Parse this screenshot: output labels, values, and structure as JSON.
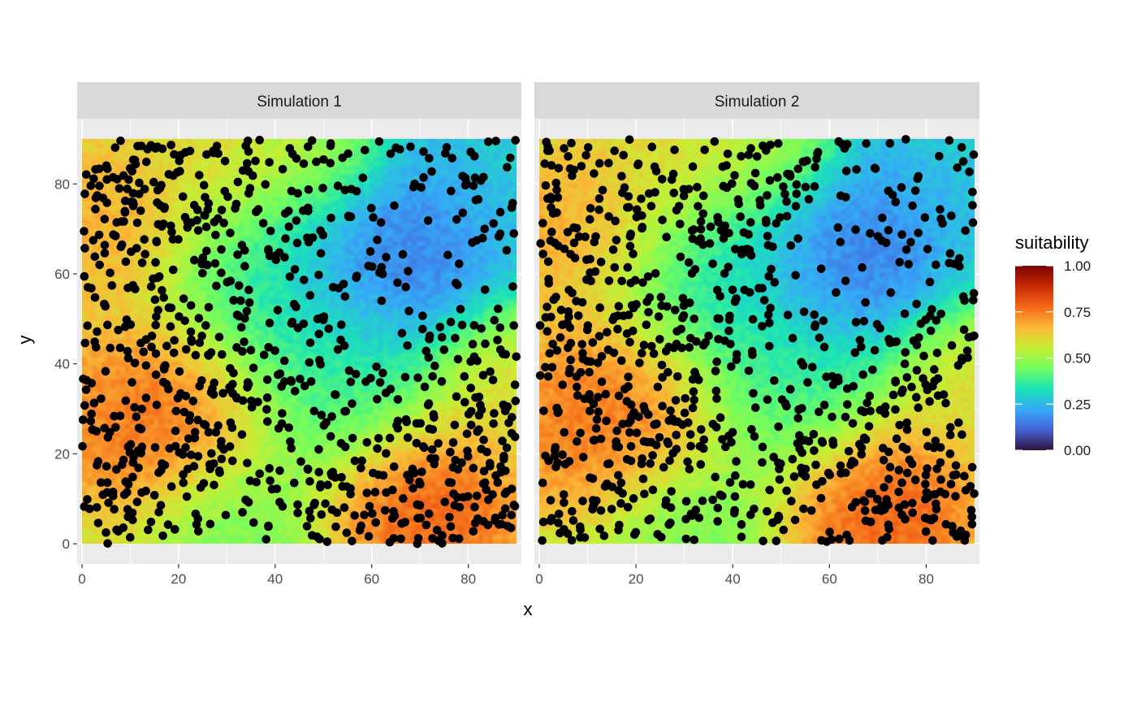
{
  "chart_data": {
    "type": "heatmap",
    "facets": [
      "Simulation 1",
      "Simulation 2"
    ],
    "xlabel": "x",
    "ylabel": "y",
    "xlim": [
      -1,
      91
    ],
    "ylim": [
      -4.5,
      94.5
    ],
    "xticks": [
      0,
      20,
      40,
      60,
      80
    ],
    "yticks": [
      0,
      20,
      40,
      60,
      80
    ],
    "raster_extent": {
      "x": [
        0,
        90
      ],
      "y": [
        0,
        90
      ]
    },
    "fill_scale": {
      "name": "suitability",
      "limits": [
        0,
        1
      ],
      "breaks": [
        0,
        0.25,
        0.5,
        0.75,
        1
      ],
      "break_labels": [
        "0.00",
        "0.25",
        "0.50",
        "0.75",
        "1.00"
      ],
      "palette": [
        "#30123b",
        "#4662d7",
        "#36aaf9",
        "#1ae4b6",
        "#72fe5e",
        "#c7ef34",
        "#fbb938",
        "#f56918",
        "#c92903",
        "#7a0403"
      ]
    },
    "suitability_surface": {
      "baseline": 0.5,
      "features": [
        {
          "x": 15,
          "y": 27,
          "value": 0.82,
          "extent": 14
        },
        {
          "x": 72,
          "y": 7,
          "value": 0.85,
          "extent": 12
        },
        {
          "x": 63,
          "y": 66,
          "value": 0.05,
          "extent": 16
        },
        {
          "x": 85,
          "y": 82,
          "value": 0.25,
          "extent": 12
        },
        {
          "x": 5,
          "y": 72,
          "value": 0.72,
          "extent": 12
        },
        {
          "x": 40,
          "y": 60,
          "value": 0.35,
          "extent": 14
        },
        {
          "x": 35,
          "y": 85,
          "value": 0.65,
          "extent": 12
        },
        {
          "x": 52,
          "y": 35,
          "value": 0.38,
          "extent": 12
        },
        {
          "x": 30,
          "y": 5,
          "value": 0.42,
          "extent": 10
        },
        {
          "x": 88,
          "y": 35,
          "value": 0.62,
          "extent": 10
        },
        {
          "x": 50,
          "y": 88,
          "value": 0.55,
          "extent": 8
        }
      ]
    },
    "points": {
      "color": "#000000",
      "approx_count_per_panel": 900,
      "density_follows_suitability": true
    }
  }
}
